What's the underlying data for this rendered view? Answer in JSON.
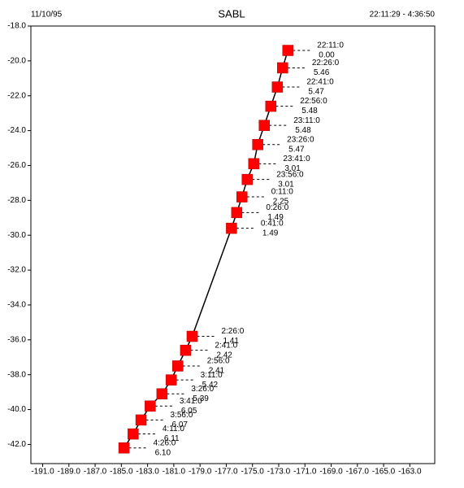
{
  "chart_data": {
    "type": "scatter",
    "title": "SABL",
    "date": "11/10/95",
    "time_range": "22:11:29 - 4:36:50",
    "x": [
      -172.3,
      -172.7,
      -173.1,
      -173.6,
      -174.1,
      -174.6,
      -174.9,
      -175.4,
      -175.8,
      -176.2,
      -176.6,
      -179.6,
      -180.1,
      -180.7,
      -181.2,
      -181.9,
      -182.8,
      -183.5,
      -184.1,
      -184.8
    ],
    "values": [
      -19.4,
      -20.4,
      -21.5,
      -22.6,
      -23.7,
      -24.8,
      -25.9,
      -26.8,
      -27.8,
      -28.7,
      -29.6,
      -35.8,
      -36.6,
      -37.5,
      -38.3,
      -39.1,
      -39.8,
      -40.6,
      -41.4,
      -42.2
    ],
    "point_times": [
      "22:11:0",
      "22:26:0",
      "22:41:0",
      "22:56:0",
      "23:11:0",
      "23:26:0",
      "23:41:0",
      "23:56:0",
      "0:11:0",
      "0:26:0",
      "0:41:0",
      "2:26:0",
      "2:41:0",
      "2:56:0",
      "3:11:0",
      "3:26:0",
      "3:41:0",
      "3:56:0",
      "4:11:0",
      "4:26:0"
    ],
    "point_speeds": [
      "0.00",
      "5.46",
      "5.47",
      "5.48",
      "5.48",
      "5.47",
      "3.01",
      "3.01",
      "2.25",
      "1.49",
      "1.49",
      "1.41",
      "2.42",
      "2.41",
      "5.42",
      "5.39",
      "6.05",
      "6.07",
      "6.11",
      "6.10"
    ],
    "color": "#ff0000",
    "line_color": "#000000",
    "xlim": [
      -191.9,
      -161.1
    ],
    "ylim": [
      -43.1,
      -18
    ],
    "xticks": [
      {
        "value": -191,
        "label": "-191.0"
      },
      {
        "value": -189,
        "label": "-189.0"
      },
      {
        "value": -187,
        "label": "-187.0"
      },
      {
        "value": -185,
        "label": "-185.0"
      },
      {
        "value": -183,
        "label": "-183.0"
      },
      {
        "value": -181,
        "label": "-181.0"
      },
      {
        "value": -179,
        "label": "-179.0"
      },
      {
        "value": -177,
        "label": "-177.0"
      },
      {
        "value": -175,
        "label": "-175.0"
      },
      {
        "value": -173,
        "label": "-173.0"
      },
      {
        "value": -171,
        "label": "-171.0"
      },
      {
        "value": -169,
        "label": "-169.0"
      },
      {
        "value": -167,
        "label": "-167.0"
      },
      {
        "value": -165,
        "label": "-165.0"
      },
      {
        "value": -163,
        "label": "-163.0"
      }
    ],
    "yticks": [
      {
        "value": -18,
        "label": "-18.0"
      },
      {
        "value": -20,
        "label": "-20.0"
      },
      {
        "value": -22,
        "label": "-22.0"
      },
      {
        "value": -24,
        "label": "-24.0"
      },
      {
        "value": -26,
        "label": "-26.0"
      },
      {
        "value": -28,
        "label": "-28.0"
      },
      {
        "value": -30,
        "label": "-30.0"
      },
      {
        "value": -32,
        "label": "-32.0"
      },
      {
        "value": -34,
        "label": "-34.0"
      },
      {
        "value": -36,
        "label": "-36.0"
      },
      {
        "value": -38,
        "label": "-38.0"
      },
      {
        "value": -40,
        "label": "-40.0"
      },
      {
        "value": -42,
        "label": "-42.0"
      }
    ]
  }
}
